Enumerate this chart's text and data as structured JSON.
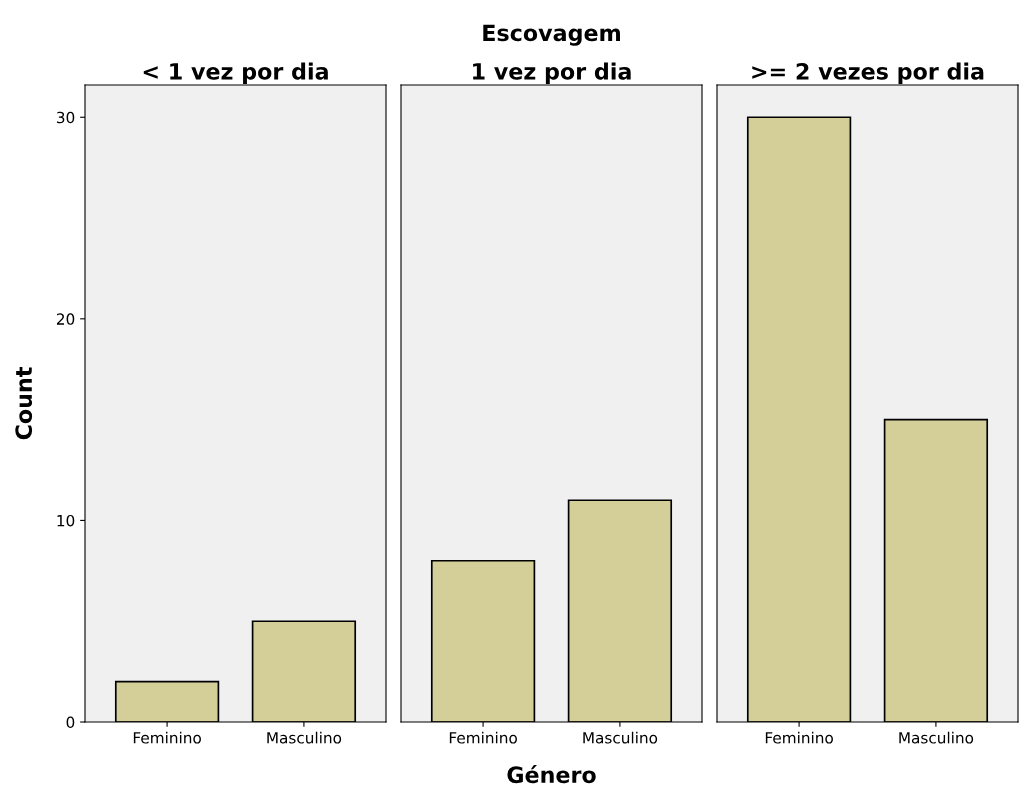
{
  "chart_data": [
    {
      "type": "bar",
      "title": "< 1 vez por dia",
      "ylabel": "Count",
      "categories": [
        "Feminino",
        "Masculino"
      ],
      "values": [
        2,
        5
      ],
      "color": "#d4cf98",
      "ylim": [
        0,
        31.6
      ],
      "yticks": [
        0,
        10,
        20,
        30
      ],
      "grid": false
    },
    {
      "type": "bar",
      "title": "1 vez por dia",
      "xlabel": "Género",
      "annotations": [
        "Escovagem"
      ],
      "categories": [
        "Feminino",
        "Masculino"
      ],
      "values": [
        8,
        11
      ],
      "color": "#d4cf98",
      "ylim": [
        0,
        31.6
      ],
      "yticks": [
        0,
        10,
        20,
        30
      ],
      "tick_labels": "x",
      "grid": false
    },
    {
      "type": "bar",
      "title": ">= 2 vezes por dia",
      "categories": [
        "Feminino",
        "Masculino"
      ],
      "values": [
        30,
        15
      ],
      "color": "#d4cf98",
      "ylim": [
        0,
        31.6
      ],
      "yticks": [
        0,
        10,
        20,
        30
      ],
      "tick_labels": "x",
      "grid": false
    }
  ]
}
